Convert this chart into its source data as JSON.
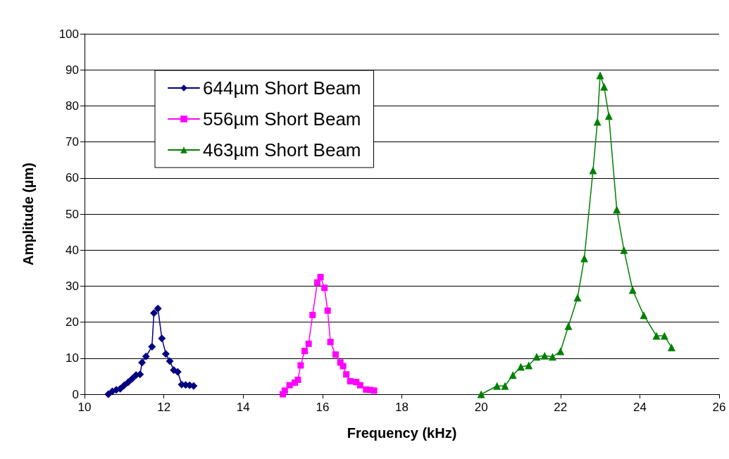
{
  "chart_data": {
    "type": "line",
    "xlabel": "Frequency (kHz)",
    "ylabel": "Amplitude (µm)",
    "xlim": [
      10,
      26
    ],
    "xticks": [
      10,
      12,
      14,
      16,
      18,
      20,
      22,
      24,
      26
    ],
    "ylim": [
      0,
      100
    ],
    "yticks": [
      0,
      10,
      20,
      30,
      40,
      50,
      60,
      70,
      80,
      90,
      100
    ],
    "grid": "y",
    "legend": "top left",
    "series": [
      {
        "name": "644µm Short Beam",
        "color": "#000080",
        "marker": "diamond",
        "x": [
          10.6,
          10.7,
          10.8,
          10.9,
          11.0,
          11.1,
          11.2,
          11.3,
          11.4,
          11.45,
          11.55,
          11.7,
          11.75,
          11.85,
          11.95,
          12.05,
          12.15,
          12.25,
          12.35,
          12.45,
          12.55,
          12.65,
          12.75
        ],
        "values": [
          0,
          0.8,
          1.2,
          1.5,
          2.5,
          3.3,
          4.3,
          5.3,
          5.5,
          8.8,
          10.5,
          13.2,
          22.5,
          23.8,
          15.5,
          11.2,
          9.2,
          6.7,
          6.2,
          2.7,
          2.6,
          2.5,
          2.3
        ]
      },
      {
        "name": "556µm Short Beam",
        "color": "#ff00ff",
        "marker": "square",
        "x": [
          15.0,
          15.05,
          15.17,
          15.3,
          15.38,
          15.45,
          15.55,
          15.65,
          15.75,
          15.87,
          15.95,
          16.05,
          16.13,
          16.2,
          16.33,
          16.45,
          16.52,
          16.6,
          16.7,
          16.85,
          16.95,
          17.1,
          17.2,
          17.3
        ],
        "values": [
          0,
          1,
          2.5,
          3.2,
          4,
          8,
          12,
          14,
          22,
          31,
          32.5,
          29.5,
          23.2,
          14.5,
          11,
          8.8,
          7.8,
          5.5,
          3.6,
          3.4,
          2.5,
          1.3,
          1.2,
          1.0
        ]
      },
      {
        "name": "463µm Short Beam",
        "color": "#008000",
        "marker": "triangle",
        "x": [
          20.0,
          20.4,
          20.6,
          20.8,
          21.0,
          21.2,
          21.4,
          21.6,
          21.8,
          22.0,
          22.2,
          22.43,
          22.6,
          22.82,
          22.93,
          23.0,
          23.1,
          23.22,
          23.42,
          23.6,
          23.82,
          24.1,
          24.42,
          24.62,
          24.8
        ],
        "values": [
          0,
          2.3,
          2.3,
          5.3,
          7.6,
          8.0,
          10.4,
          10.7,
          10.4,
          11.9,
          18.9,
          26.8,
          37.7,
          62.1,
          75.6,
          88.5,
          85.3,
          77.2,
          51.2,
          40.0,
          28.9,
          21.9,
          16.2,
          16.2,
          13.0
        ]
      }
    ]
  }
}
